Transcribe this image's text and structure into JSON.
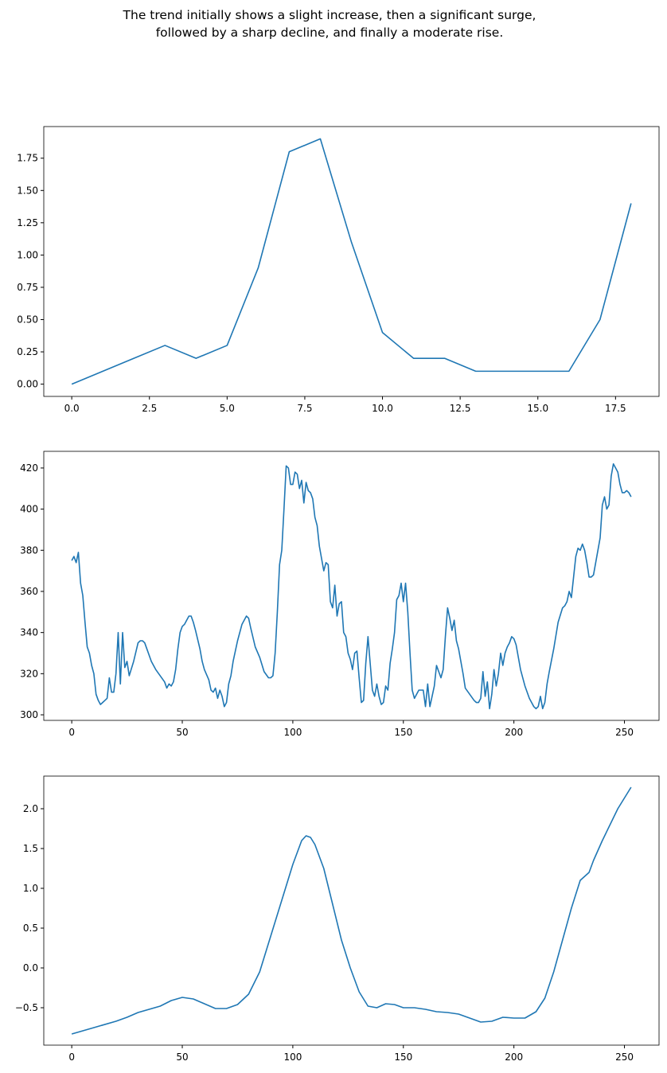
{
  "title": [
    "The trend initially shows a slight increase, then a significant surge,",
    "followed by a sharp decline, and finally a moderate rise."
  ],
  "chart_data": [
    {
      "type": "line",
      "color": "#1f77b4",
      "x": [
        0,
        1,
        2,
        3,
        4,
        5,
        6,
        7,
        8,
        9,
        10,
        11,
        12,
        13,
        14,
        15,
        16,
        17,
        18
      ],
      "values": [
        0,
        0.1,
        0.2,
        0.3,
        0.2,
        0.3,
        0.9,
        1.8,
        1.9,
        1.1,
        0.4,
        0.2,
        0.2,
        0.1,
        0.1,
        0.1,
        0.1,
        0.5,
        1.4
      ],
      "xlim": [
        -0.9,
        18.9
      ],
      "ylim": [
        -0.095,
        1.995
      ],
      "xticks": [
        {
          "value": 0,
          "label": "0.0"
        },
        {
          "value": 2.5,
          "label": "2.5"
        },
        {
          "value": 5,
          "label": "5.0"
        },
        {
          "value": 7.5,
          "label": "7.5"
        },
        {
          "value": 10,
          "label": "10.0"
        },
        {
          "value": 12.5,
          "label": "12.5"
        },
        {
          "value": 15,
          "label": "15.0"
        },
        {
          "value": 17.5,
          "label": "17.5"
        }
      ],
      "yticks": [
        {
          "value": 0,
          "label": "0.00"
        },
        {
          "value": 0.25,
          "label": "0.25"
        },
        {
          "value": 0.5,
          "label": "0.50"
        },
        {
          "value": 0.75,
          "label": "0.75"
        },
        {
          "value": 1,
          "label": "1.00"
        },
        {
          "value": 1.25,
          "label": "1.25"
        },
        {
          "value": 1.5,
          "label": "1.50"
        },
        {
          "value": 1.75,
          "label": "1.75"
        }
      ]
    },
    {
      "type": "line",
      "color": "#1f77b4",
      "x": [
        0,
        1,
        2,
        3,
        4,
        5,
        6,
        7,
        8,
        9,
        10,
        11,
        12,
        13,
        14,
        15,
        16,
        17,
        18,
        19,
        20,
        21,
        22,
        23,
        24,
        25,
        26,
        28,
        30,
        31,
        32,
        33,
        34,
        36,
        38,
        40,
        42,
        43,
        44,
        45,
        46,
        47,
        48,
        49,
        50,
        51,
        52,
        53,
        54,
        55,
        56,
        58,
        59,
        60,
        62,
        63,
        64,
        65,
        66,
        67,
        68,
        69,
        70,
        71,
        72,
        73,
        75,
        77,
        79,
        80,
        81,
        83,
        85,
        87,
        89,
        90,
        91,
        92,
        93,
        94,
        95,
        96,
        97,
        98,
        99,
        100,
        101,
        102,
        103,
        104,
        105,
        106,
        107,
        108,
        109,
        110,
        111,
        112,
        113,
        114,
        115,
        116,
        117,
        118,
        119,
        120,
        121,
        122,
        123,
        124,
        125,
        126,
        127,
        128,
        129,
        130,
        131,
        132,
        133,
        134,
        135,
        136,
        137,
        138,
        139,
        140,
        141,
        142,
        143,
        144,
        145,
        146,
        147,
        148,
        149,
        150,
        151,
        152,
        153,
        154,
        155,
        156,
        157,
        158,
        159,
        160,
        161,
        162,
        163,
        164,
        165,
        166,
        167,
        168,
        169,
        170,
        171,
        172,
        173,
        174,
        175,
        176,
        177,
        178,
        180,
        182,
        183,
        184,
        185,
        186,
        187,
        188,
        189,
        190,
        191,
        192,
        193,
        194,
        195,
        196,
        197,
        198,
        199,
        200,
        201,
        202,
        203,
        205,
        207,
        209,
        210,
        211,
        212,
        213,
        214,
        215,
        216,
        218,
        220,
        222,
        223,
        224,
        225,
        226,
        227,
        228,
        229,
        230,
        231,
        232,
        233,
        234,
        235,
        236,
        237,
        238,
        239,
        240,
        241,
        242,
        243,
        244,
        245,
        246,
        247,
        248,
        249,
        250,
        251,
        252,
        253
      ],
      "values": [
        375,
        377,
        374,
        379,
        364,
        358,
        345,
        333,
        330,
        324,
        320,
        310,
        307,
        305,
        306,
        307,
        308,
        318,
        311,
        311,
        320,
        340,
        315,
        340,
        323,
        326,
        319,
        326,
        335,
        336,
        336,
        335,
        332,
        326,
        322,
        319,
        316,
        313,
        315,
        314,
        316,
        322,
        332,
        340,
        343,
        344,
        346,
        348,
        348,
        345,
        341,
        332,
        326,
        322,
        317,
        312,
        311,
        313,
        308,
        312,
        309,
        304,
        306,
        315,
        319,
        326,
        336,
        344,
        348,
        347,
        342,
        333,
        328,
        321,
        318,
        318,
        319,
        330,
        350,
        373,
        380,
        400,
        421,
        420,
        412,
        412,
        418,
        417,
        410,
        414,
        403,
        413,
        409,
        408,
        405,
        396,
        392,
        382,
        376,
        370,
        374,
        373,
        355,
        352,
        363,
        348,
        354,
        355,
        340,
        338,
        330,
        327,
        322,
        330,
        331,
        318,
        306,
        307,
        325,
        338,
        325,
        312,
        309,
        315,
        309,
        305,
        306,
        314,
        312,
        325,
        332,
        340,
        356,
        358,
        364,
        355,
        364,
        350,
        330,
        312,
        308,
        310,
        312,
        312,
        312,
        304,
        315,
        304,
        309,
        314,
        324,
        321,
        318,
        322,
        338,
        352,
        347,
        341,
        346,
        336,
        332,
        326,
        320,
        313,
        310,
        307,
        306,
        306,
        308,
        321,
        309,
        316,
        303,
        310,
        322,
        314,
        320,
        330,
        324,
        330,
        333,
        335,
        338,
        337,
        334,
        328,
        322,
        314,
        308,
        304,
        303,
        304,
        309,
        303,
        306,
        315,
        321,
        332,
        345,
        352,
        353,
        355,
        360,
        357,
        367,
        377,
        381,
        380,
        383,
        380,
        374,
        367,
        367,
        368,
        374,
        380,
        386,
        402,
        406,
        400,
        402,
        416,
        422,
        420,
        418,
        412,
        408,
        408,
        409,
        408,
        406
      ],
      "xlim": [
        -12.65,
        265.65
      ],
      "ylim": [
        297.3,
        428.1
      ],
      "xticks": [
        0,
        50,
        100,
        150,
        200,
        250
      ],
      "yticks": [
        300,
        320,
        340,
        360,
        380,
        400,
        420
      ]
    },
    {
      "type": "line",
      "color": "#1f77b4",
      "x": [
        0,
        10,
        20,
        25,
        30,
        40,
        45,
        50,
        55,
        60,
        65,
        70,
        75,
        80,
        85,
        90,
        95,
        100,
        104,
        106,
        108,
        110,
        114,
        118,
        122,
        126,
        130,
        134,
        138,
        142,
        146,
        150,
        155,
        160,
        165,
        170,
        175,
        180,
        185,
        190,
        195,
        200,
        205,
        210,
        214,
        218,
        222,
        226,
        230,
        234,
        236,
        240,
        247,
        253
      ],
      "values": [
        -0.83,
        -0.75,
        -0.67,
        -0.62,
        -0.56,
        -0.48,
        -0.41,
        -0.37,
        -0.39,
        -0.45,
        -0.51,
        -0.51,
        -0.46,
        -0.33,
        -0.05,
        0.4,
        0.85,
        1.3,
        1.6,
        1.66,
        1.64,
        1.55,
        1.25,
        0.8,
        0.35,
        0,
        -0.3,
        -0.48,
        -0.5,
        -0.45,
        -0.46,
        -0.5,
        -0.5,
        -0.52,
        -0.55,
        -0.56,
        -0.58,
        -0.63,
        -0.68,
        -0.67,
        -0.62,
        -0.63,
        -0.63,
        -0.55,
        -0.38,
        -0.05,
        0.35,
        0.75,
        1.1,
        1.2,
        1.35,
        1.6,
        2,
        2.27
      ],
      "xlim": [
        -12.65,
        265.65
      ],
      "ylim": [
        -0.97,
        2.41
      ],
      "xticks": [
        0,
        50,
        100,
        150,
        200,
        250
      ],
      "yticks": [
        {
          "value": -0.5,
          "label": "−0.5"
        },
        {
          "value": 0,
          "label": "0.0"
        },
        {
          "value": 0.5,
          "label": "0.5"
        },
        {
          "value": 1,
          "label": "1.0"
        },
        {
          "value": 1.5,
          "label": "1.5"
        },
        {
          "value": 2,
          "label": "2.0"
        }
      ]
    }
  ]
}
